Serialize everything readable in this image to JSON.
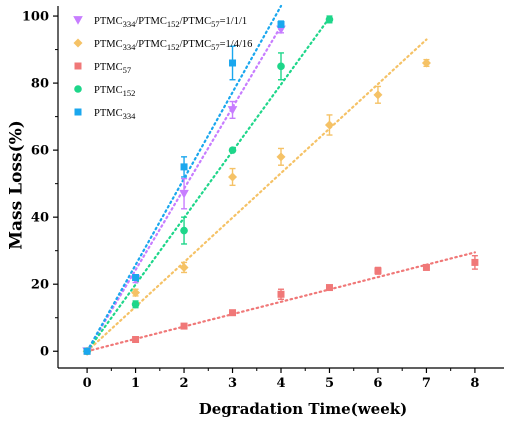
{
  "chart_data": {
    "type": "scatter",
    "xlabel": "Degradation Time(week)",
    "ylabel": "Mass Loss(%)",
    "xlim": [
      -0.6,
      8.6
    ],
    "ylim": [
      -5,
      103
    ],
    "xticks": [
      0,
      1,
      2,
      3,
      4,
      5,
      6,
      7,
      8
    ],
    "yticks": [
      0,
      20,
      40,
      60,
      80,
      100
    ],
    "legend_position": "top-left",
    "series": [
      {
        "name": "PTMC334/PTMC152/PTMC57=1/1/1",
        "label_parts": [
          [
            "PTMC",
            ""
          ],
          [
            "334",
            "sub"
          ],
          [
            "/PTMC",
            ""
          ],
          [
            "152",
            "sub"
          ],
          [
            "/PTMC",
            ""
          ],
          [
            "57",
            "sub"
          ],
          [
            "=1/1/1",
            ""
          ]
        ],
        "color": "#c77dff",
        "marker": "triangle-down",
        "x": [
          0,
          1,
          2,
          3,
          4
        ],
        "y": [
          0,
          21.5,
          47,
          72,
          96
        ],
        "err": [
          0,
          1,
          4.5,
          2.5,
          1
        ],
        "trend": [
          [
            0,
            0
          ],
          [
            4,
            97
          ]
        ]
      },
      {
        "name": "PTMC334/PTMC152/PTMC57=1/4/16",
        "label_parts": [
          [
            "PTMC",
            ""
          ],
          [
            "334",
            "sub"
          ],
          [
            "/PTMC",
            ""
          ],
          [
            "152",
            "sub"
          ],
          [
            "/PTMC",
            ""
          ],
          [
            "57",
            "sub"
          ],
          [
            "=1/4/16",
            ""
          ]
        ],
        "color": "#f5c266",
        "marker": "diamond",
        "x": [
          0,
          1,
          2,
          3,
          4,
          5,
          6,
          7
        ],
        "y": [
          0,
          17.5,
          25,
          52,
          58,
          67.5,
          76.5,
          86
        ],
        "err": [
          0,
          1,
          1.5,
          2.5,
          2.5,
          3,
          2.5,
          1
        ],
        "trend": [
          [
            0,
            0
          ],
          [
            7,
            93
          ]
        ]
      },
      {
        "name": "PTMC57",
        "label_parts": [
          [
            "PTMC",
            ""
          ],
          [
            "57",
            "sub"
          ]
        ],
        "color": "#f07878",
        "marker": "square",
        "x": [
          0,
          1,
          2,
          3,
          4,
          5,
          6,
          7,
          8
        ],
        "y": [
          0,
          3.5,
          7.5,
          11.5,
          17,
          19,
          24,
          25,
          26.5
        ],
        "err": [
          0,
          0.5,
          0.5,
          0.5,
          1.5,
          0.5,
          1,
          0.5,
          2
        ],
        "trend": [
          [
            0,
            0
          ],
          [
            8,
            29.5
          ]
        ]
      },
      {
        "name": "PTMC152",
        "label_parts": [
          [
            "PTMC",
            ""
          ],
          [
            "152",
            "sub"
          ]
        ],
        "color": "#1ed68a",
        "marker": "circle",
        "x": [
          0,
          1,
          2,
          3,
          4,
          5
        ],
        "y": [
          0,
          14,
          36,
          60,
          85,
          99
        ],
        "err": [
          0,
          1,
          4,
          0.5,
          4,
          1
        ],
        "trend": [
          [
            0,
            0
          ],
          [
            5,
            99.5
          ]
        ]
      },
      {
        "name": "PTMC334",
        "label_parts": [
          [
            "PTMC",
            ""
          ],
          [
            "334",
            "sub"
          ]
        ],
        "color": "#1aa7ee",
        "marker": "square",
        "x": [
          0,
          1,
          2,
          3,
          4
        ],
        "y": [
          0,
          22,
          55,
          86,
          97.5
        ],
        "err": [
          0,
          0.5,
          3,
          5,
          1
        ],
        "trend": [
          [
            0,
            0
          ],
          [
            4,
            103
          ]
        ]
      }
    ]
  }
}
